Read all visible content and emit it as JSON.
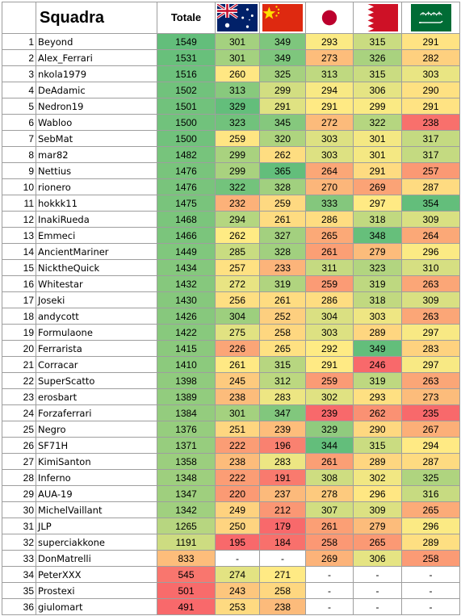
{
  "header": {
    "team_label": "Squadra",
    "total_label": "Totale",
    "flags": [
      {
        "icon": "australia-flag-icon"
      },
      {
        "icon": "china-flag-icon"
      },
      {
        "icon": "japan-flag-icon"
      },
      {
        "icon": "bahrain-flag-icon"
      },
      {
        "icon": "saudi-arabia-flag-icon"
      }
    ]
  },
  "colors": {
    "high": "#63be7b",
    "mid": "#ffeb84",
    "low": "#f8696b"
  },
  "rows": [
    {
      "rank": "1",
      "team": "Beyond",
      "total": "1549",
      "scores": [
        "301",
        "349",
        "293",
        "315",
        "291"
      ]
    },
    {
      "rank": "2",
      "team": "Alex_Ferrari",
      "total": "1531",
      "scores": [
        "301",
        "349",
        "273",
        "326",
        "282"
      ]
    },
    {
      "rank": "3",
      "team": "nkola1979",
      "total": "1516",
      "scores": [
        "260",
        "325",
        "313",
        "315",
        "303"
      ]
    },
    {
      "rank": "4",
      "team": "DeAdamic",
      "total": "1502",
      "scores": [
        "313",
        "299",
        "294",
        "306",
        "290"
      ]
    },
    {
      "rank": "5",
      "team": "Nedron19",
      "total": "1501",
      "scores": [
        "329",
        "291",
        "291",
        "299",
        "291"
      ]
    },
    {
      "rank": "6",
      "team": "Wabloo",
      "total": "1500",
      "scores": [
        "323",
        "345",
        "272",
        "322",
        "238"
      ]
    },
    {
      "rank": "7",
      "team": "SebMat",
      "total": "1500",
      "scores": [
        "259",
        "320",
        "303",
        "301",
        "317"
      ]
    },
    {
      "rank": "8",
      "team": "mar82",
      "total": "1482",
      "scores": [
        "299",
        "262",
        "303",
        "301",
        "317"
      ]
    },
    {
      "rank": "9",
      "team": "Nettius",
      "total": "1476",
      "scores": [
        "299",
        "365",
        "264",
        "291",
        "257"
      ]
    },
    {
      "rank": "10",
      "team": "rionero",
      "total": "1476",
      "scores": [
        "322",
        "328",
        "270",
        "269",
        "287"
      ]
    },
    {
      "rank": "11",
      "team": "hokkk11",
      "total": "1475",
      "scores": [
        "232",
        "259",
        "333",
        "297",
        "354"
      ]
    },
    {
      "rank": "12",
      "team": "InakiRueda",
      "total": "1468",
      "scores": [
        "294",
        "261",
        "286",
        "318",
        "309"
      ]
    },
    {
      "rank": "13",
      "team": "Emmeci",
      "total": "1466",
      "scores": [
        "262",
        "327",
        "265",
        "348",
        "264"
      ]
    },
    {
      "rank": "14",
      "team": "AncientMariner",
      "total": "1449",
      "scores": [
        "285",
        "328",
        "261",
        "279",
        "296"
      ]
    },
    {
      "rank": "15",
      "team": "NicktheQuick",
      "total": "1434",
      "scores": [
        "257",
        "233",
        "311",
        "323",
        "310"
      ]
    },
    {
      "rank": "16",
      "team": "Whitestar",
      "total": "1432",
      "scores": [
        "272",
        "319",
        "259",
        "319",
        "263"
      ]
    },
    {
      "rank": "17",
      "team": "Joseki",
      "total": "1430",
      "scores": [
        "256",
        "261",
        "286",
        "318",
        "309"
      ]
    },
    {
      "rank": "18",
      "team": "andycott",
      "total": "1426",
      "scores": [
        "304",
        "252",
        "304",
        "303",
        "263"
      ]
    },
    {
      "rank": "19",
      "team": "Formulaone",
      "total": "1422",
      "scores": [
        "275",
        "258",
        "303",
        "289",
        "297"
      ]
    },
    {
      "rank": "20",
      "team": "Ferrarista",
      "total": "1415",
      "scores": [
        "226",
        "265",
        "292",
        "349",
        "283"
      ]
    },
    {
      "rank": "21",
      "team": "Corracar",
      "total": "1410",
      "scores": [
        "261",
        "315",
        "291",
        "246",
        "297"
      ]
    },
    {
      "rank": "22",
      "team": "SuperScatto",
      "total": "1398",
      "scores": [
        "245",
        "312",
        "259",
        "319",
        "263"
      ]
    },
    {
      "rank": "23",
      "team": "erosbart",
      "total": "1389",
      "scores": [
        "238",
        "283",
        "302",
        "293",
        "273"
      ]
    },
    {
      "rank": "24",
      "team": "Forzaferrari",
      "total": "1384",
      "scores": [
        "301",
        "347",
        "239",
        "262",
        "235"
      ]
    },
    {
      "rank": "25",
      "team": "Negro",
      "total": "1376",
      "scores": [
        "251",
        "239",
        "329",
        "290",
        "267"
      ]
    },
    {
      "rank": "26",
      "team": "SF71H",
      "total": "1371",
      "scores": [
        "222",
        "196",
        "344",
        "315",
        "294"
      ]
    },
    {
      "rank": "27",
      "team": "KimiSanton",
      "total": "1358",
      "scores": [
        "238",
        "283",
        "261",
        "289",
        "287"
      ]
    },
    {
      "rank": "28",
      "team": "Inferno",
      "total": "1348",
      "scores": [
        "222",
        "191",
        "308",
        "302",
        "325"
      ]
    },
    {
      "rank": "29",
      "team": "AUA-19",
      "total": "1347",
      "scores": [
        "220",
        "237",
        "278",
        "296",
        "316"
      ]
    },
    {
      "rank": "30",
      "team": "MichelVaillant",
      "total": "1342",
      "scores": [
        "249",
        "212",
        "307",
        "309",
        "265"
      ]
    },
    {
      "rank": "31",
      "team": "JLP",
      "total": "1265",
      "scores": [
        "250",
        "179",
        "261",
        "279",
        "296"
      ]
    },
    {
      "rank": "32",
      "team": "superciakkone",
      "total": "1191",
      "scores": [
        "195",
        "184",
        "258",
        "265",
        "289"
      ]
    },
    {
      "rank": "33",
      "team": "DonMatrelli",
      "total": "833",
      "scores": [
        "-",
        "-",
        "269",
        "306",
        "258"
      ]
    },
    {
      "rank": "34",
      "team": "PeterXXX",
      "total": "545",
      "scores": [
        "274",
        "271",
        "-",
        "-",
        "-"
      ]
    },
    {
      "rank": "35",
      "team": "Prostexi",
      "total": "501",
      "scores": [
        "243",
        "258",
        "-",
        "-",
        "-"
      ]
    },
    {
      "rank": "36",
      "team": "giulomart",
      "total": "491",
      "scores": [
        "253",
        "238",
        "-",
        "-",
        "-"
      ]
    }
  ]
}
